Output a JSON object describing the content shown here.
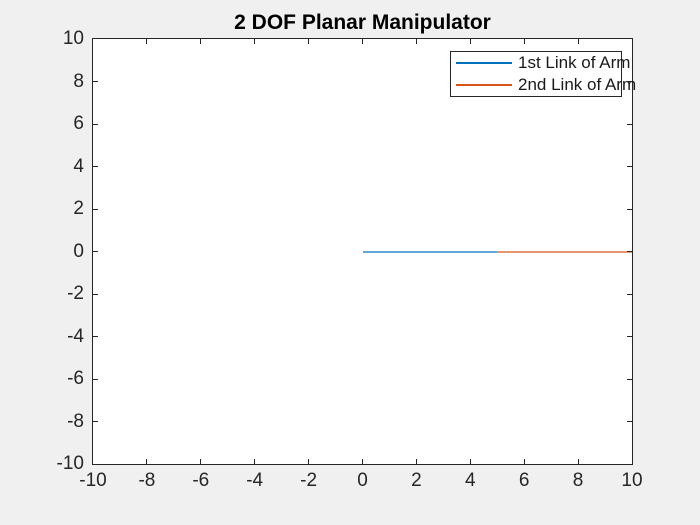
{
  "figure": {
    "background_color": "#f0f0f0",
    "plot_background_color": "#ffffff",
    "axis_color": "#262626",
    "title_color": "#000000"
  },
  "chart_data": {
    "type": "line",
    "title": "2 DOF Planar Manipulator",
    "xlabel": "",
    "ylabel": "",
    "xlim": [
      -10,
      10
    ],
    "ylim": [
      -10,
      10
    ],
    "xticks": [
      -10,
      -8,
      -6,
      -4,
      -2,
      0,
      2,
      4,
      6,
      8,
      10
    ],
    "yticks": [
      -10,
      -8,
      -6,
      -4,
      -2,
      0,
      2,
      4,
      6,
      8,
      10
    ],
    "grid": false,
    "box": true,
    "tick_direction": "in",
    "legend_position": "top-right",
    "series": [
      {
        "name": "1st Link of Arm",
        "color": "#0072BD",
        "x": [
          0,
          5
        ],
        "y": [
          0,
          0
        ]
      },
      {
        "name": "2nd Link of Arm",
        "color": "#D95319",
        "x": [
          5,
          10
        ],
        "y": [
          0,
          0
        ]
      }
    ]
  }
}
